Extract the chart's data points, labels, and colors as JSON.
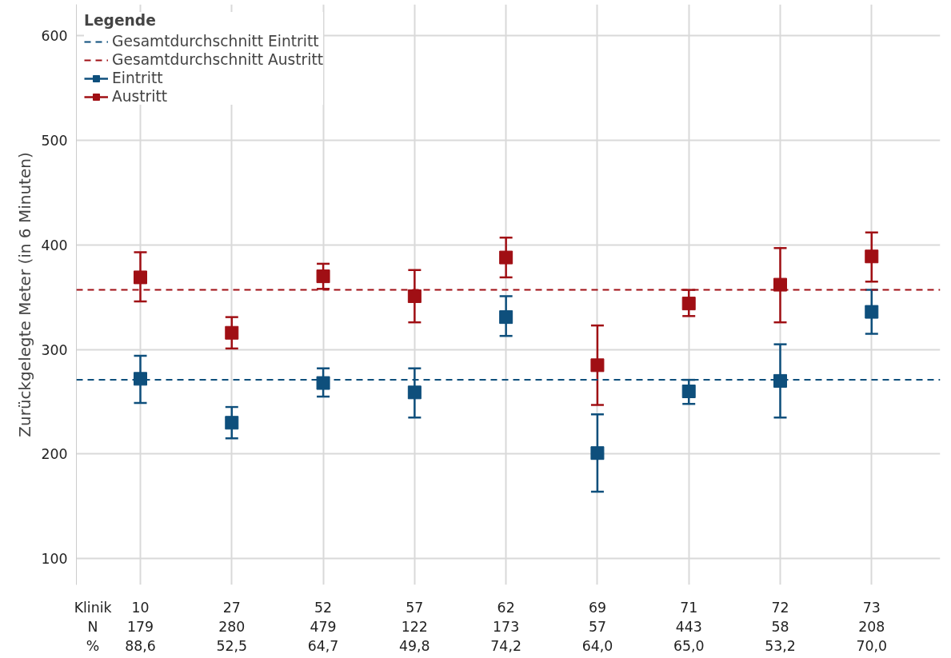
{
  "chart_data": {
    "type": "scatter",
    "ylabel": "Zurückgelegte Meter (in 6 Minuten)",
    "legend_title": "Legende",
    "categories": [
      "10\n179\n88,6",
      "27\n280\n52,5",
      "52\n479\n64,7",
      "57\n122\n49,8",
      "62\n173\n74,2",
      "69\n57\n64,0",
      "71\n443\n65,0",
      "72\n58\n53,2",
      "73\n208\n70,0"
    ],
    "series": [
      {
        "name": "Eintritt",
        "color": "#0e4f7c",
        "values": [
          272,
          230,
          268,
          259,
          331,
          201,
          260,
          270,
          336
        ],
        "errors": [
          [
            249,
            294
          ],
          [
            215,
            245
          ],
          [
            255,
            282
          ],
          [
            235,
            282
          ],
          [
            313,
            351
          ],
          [
            164,
            238
          ],
          [
            248,
            271
          ],
          [
            235,
            305
          ],
          [
            315,
            357
          ]
        ]
      },
      {
        "name": "Austritt",
        "color": "#a00f14",
        "values": [
          369,
          316,
          370,
          351,
          388,
          285,
          344,
          362,
          389
        ],
        "errors": [
          [
            346,
            393
          ],
          [
            301,
            331
          ],
          [
            358,
            382
          ],
          [
            326,
            376
          ],
          [
            369,
            407
          ],
          [
            247,
            323
          ],
          [
            332,
            357
          ],
          [
            326,
            397
          ],
          [
            365,
            412
          ]
        ]
      }
    ],
    "ref_lines": [
      {
        "axis": "y",
        "value": 271,
        "label": "Gesamtdurchschnitt Eintritt",
        "color": "#0e4f7c",
        "line_style": "dashed"
      },
      {
        "axis": "y",
        "value": 357,
        "label": "Gesamtdurchschnitt Austritt",
        "color": "#a00f14",
        "line_style": "dashed"
      }
    ],
    "annotations": [
      "Klinik\nN\n%"
    ],
    "ylim": [
      75,
      630
    ],
    "yticks": [
      100,
      200,
      300,
      400,
      500,
      600
    ],
    "grid": true,
    "legend": "top left",
    "marker": "square"
  }
}
